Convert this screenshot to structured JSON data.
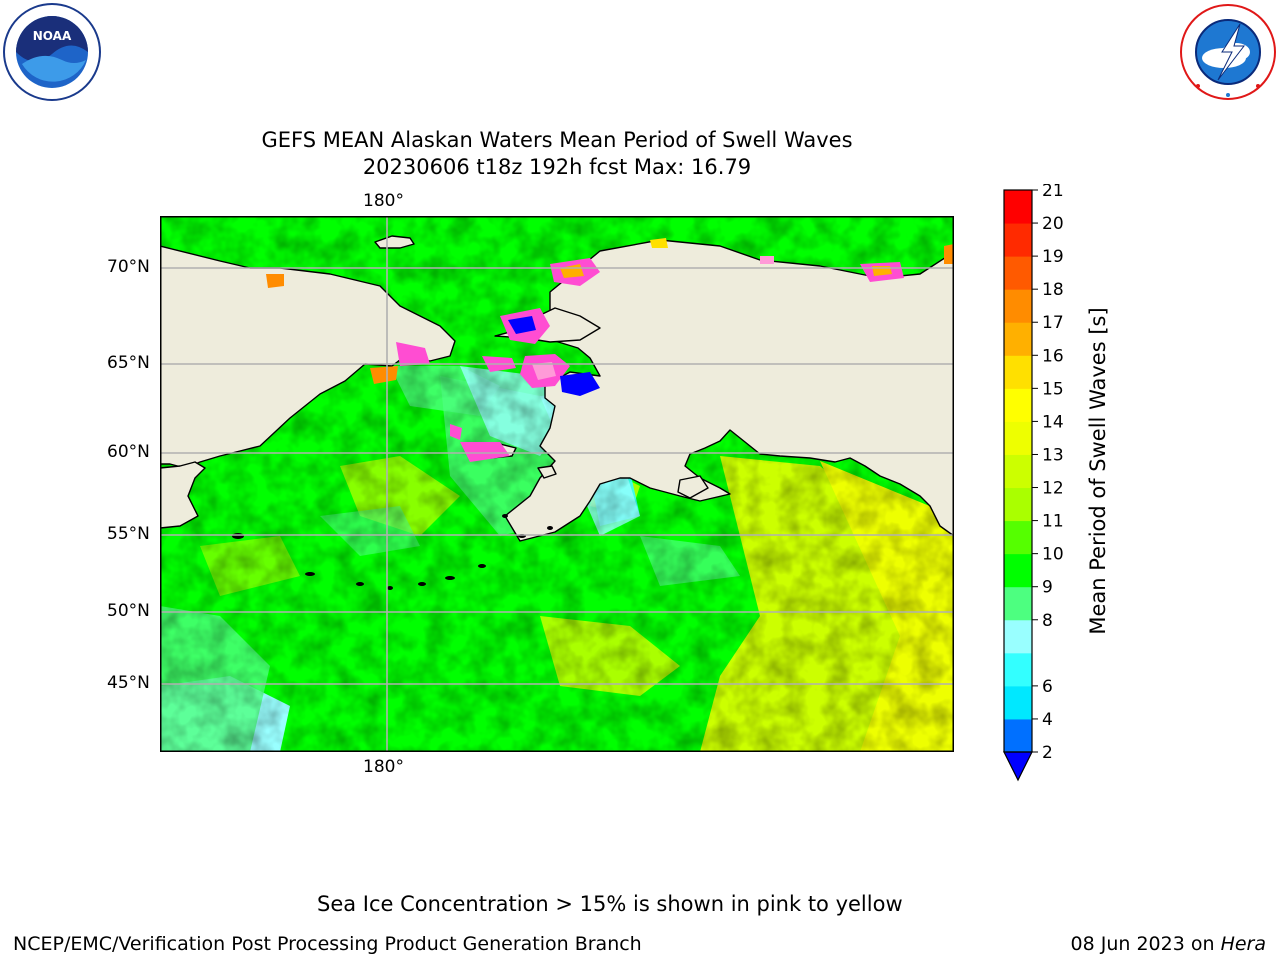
{
  "header": {
    "title_line1": "GEFS MEAN Alaskan Waters Mean Period of Swell Waves",
    "title_line2": "20230606 t18z 192h fcst   Max: 16.79"
  },
  "logos": {
    "noaa": {
      "text": "NOAA",
      "ring_text": "NATIONAL OCEANIC AND ATMOSPHERIC ADMINISTRATION · U.S. DEPARTMENT OF COMMERCE"
    },
    "nws": {
      "ring_text": "NATIONAL WEATHER SERVICE"
    }
  },
  "map": {
    "longitude_label": "180°",
    "latitude_labels": [
      {
        "value": 70,
        "label": "70°N"
      },
      {
        "value": 65,
        "label": "65°N"
      },
      {
        "value": 60,
        "label": "60°N"
      },
      {
        "value": 55,
        "label": "55°N"
      },
      {
        "value": 50,
        "label": "50°N"
      },
      {
        "value": 45,
        "label": "45°N"
      }
    ]
  },
  "colorbar": {
    "label": "Mean Period of Swell Waves [s]",
    "levels": [
      2,
      4,
      6,
      7,
      8,
      9,
      10,
      11,
      12,
      13,
      14,
      15,
      16,
      17,
      18,
      19,
      20,
      21
    ],
    "tick_labels": [
      "2",
      "4",
      "6",
      "8",
      "9",
      "10",
      "11",
      "12",
      "13",
      "14",
      "15",
      "16",
      "17",
      "18",
      "19",
      "20",
      "21"
    ],
    "colors": [
      "#0070ff",
      "#00e8ff",
      "#33ffff",
      "#99ffff",
      "#4dff80",
      "#00ff00",
      "#55ff00",
      "#aaff00",
      "#ccff00",
      "#eeff00",
      "#ffff00",
      "#ffe000",
      "#ffb000",
      "#ff8c00",
      "#ff5a00",
      "#ff2a00",
      "#ff0000"
    ],
    "extend_color": "#0000ff"
  },
  "colors": {
    "land": "#eeecdc",
    "sea_ice_pink": "#ff4dd2",
    "sea_ice_yellow": "#ffe066",
    "gridline": "#b0b0b0",
    "coastline": "#000000"
  },
  "notes": {
    "sea_ice": "Sea Ice Concentration > 15% is shown in pink to yellow"
  },
  "footer": {
    "left": "NCEP/EMC/Verification Post Processing Product Generation Branch",
    "date": "08 Jun 2023 on ",
    "machine": "Hera"
  }
}
